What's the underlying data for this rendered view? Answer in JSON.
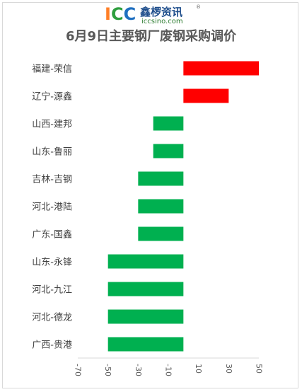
{
  "logo": {
    "letters": [
      "I",
      "C",
      "C"
    ],
    "cn_name": "鑫椤资讯",
    "domain": "iccsino.com",
    "reg_mark": "®",
    "colors": [
      "#ff7f27",
      "#2e9e3e",
      "#1f6fc0"
    ]
  },
  "chart_data": {
    "type": "bar",
    "orientation": "horizontal",
    "title": "6月9日主要钢厂废钢采购调价",
    "categories": [
      "福建-荣信",
      "辽宁-源鑫",
      "山西-建邦",
      "山东-鲁丽",
      "吉林-吉钢",
      "河北-港陆",
      "广东-国鑫",
      "山东-永锋",
      "河北-九江",
      "河北-德龙",
      "广西-贵港"
    ],
    "values": [
      50,
      30,
      -20,
      -20,
      -30,
      -30,
      -30,
      -50,
      -50,
      -50,
      -50
    ],
    "xlim": [
      -70,
      50
    ],
    "xticks": [
      -70,
      -50,
      -30,
      -10,
      10,
      30,
      50
    ],
    "grid": false,
    "legend": "none",
    "colors": {
      "positive": "#ff0000",
      "negative": "#00b050"
    }
  }
}
